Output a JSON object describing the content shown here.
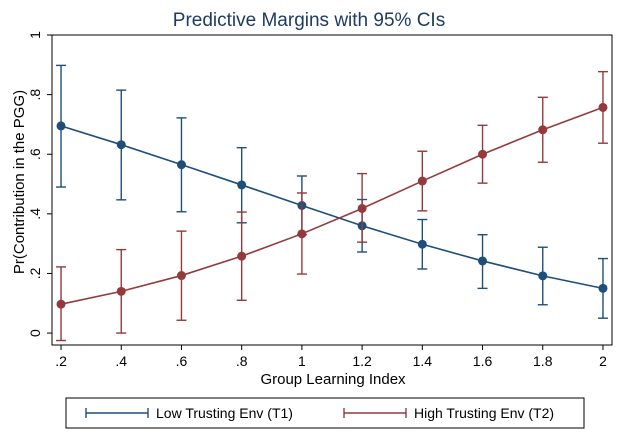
{
  "chart_data": {
    "type": "line",
    "title": "Predictive Margins with 95% CIs",
    "xlabel": "Group Learning Index",
    "ylabel": "Pr(Contribution in the PGG)",
    "x": [
      0.2,
      0.4,
      0.6,
      0.8,
      1.0,
      1.2,
      1.4,
      1.6,
      1.8,
      2.0
    ],
    "xlim": [
      0.17,
      2.03
    ],
    "ylim": [
      -0.04,
      1.0
    ],
    "x_ticks": [
      0.2,
      0.4,
      0.6,
      0.8,
      1.0,
      1.2,
      1.4,
      1.6,
      1.8,
      2.0
    ],
    "x_tick_labels": [
      ".2",
      ".4",
      ".6",
      ".8",
      "1",
      "1.2",
      "1.4",
      "1.6",
      "1.8",
      "2"
    ],
    "y_ticks": [
      0,
      0.2,
      0.4,
      0.6,
      0.8,
      1.0
    ],
    "y_tick_labels": [
      "0",
      ".2",
      ".4",
      ".6",
      ".8",
      "1"
    ],
    "grid": false,
    "legend_position": "bottom",
    "series": [
      {
        "name": "Low Trusting Env (T1)",
        "color": "#1f4e79",
        "values": [
          0.695,
          0.632,
          0.565,
          0.497,
          0.428,
          0.36,
          0.298,
          0.242,
          0.192,
          0.15
        ],
        "ci_low": [
          0.49,
          0.447,
          0.407,
          0.37,
          0.33,
          0.272,
          0.215,
          0.15,
          0.095,
          0.05
        ],
        "ci_high": [
          0.898,
          0.815,
          0.722,
          0.622,
          0.527,
          0.448,
          0.381,
          0.33,
          0.288,
          0.25
        ]
      },
      {
        "name": "High Trusting Env (T2)",
        "color": "#943a3d",
        "values": [
          0.097,
          0.14,
          0.193,
          0.258,
          0.333,
          0.418,
          0.51,
          0.6,
          0.682,
          0.757
        ],
        "ci_low": [
          -0.025,
          0.0,
          0.043,
          0.11,
          0.198,
          0.305,
          0.41,
          0.503,
          0.573,
          0.637
        ],
        "ci_high": [
          0.222,
          0.28,
          0.342,
          0.406,
          0.47,
          0.535,
          0.61,
          0.697,
          0.791,
          0.877
        ]
      }
    ]
  }
}
